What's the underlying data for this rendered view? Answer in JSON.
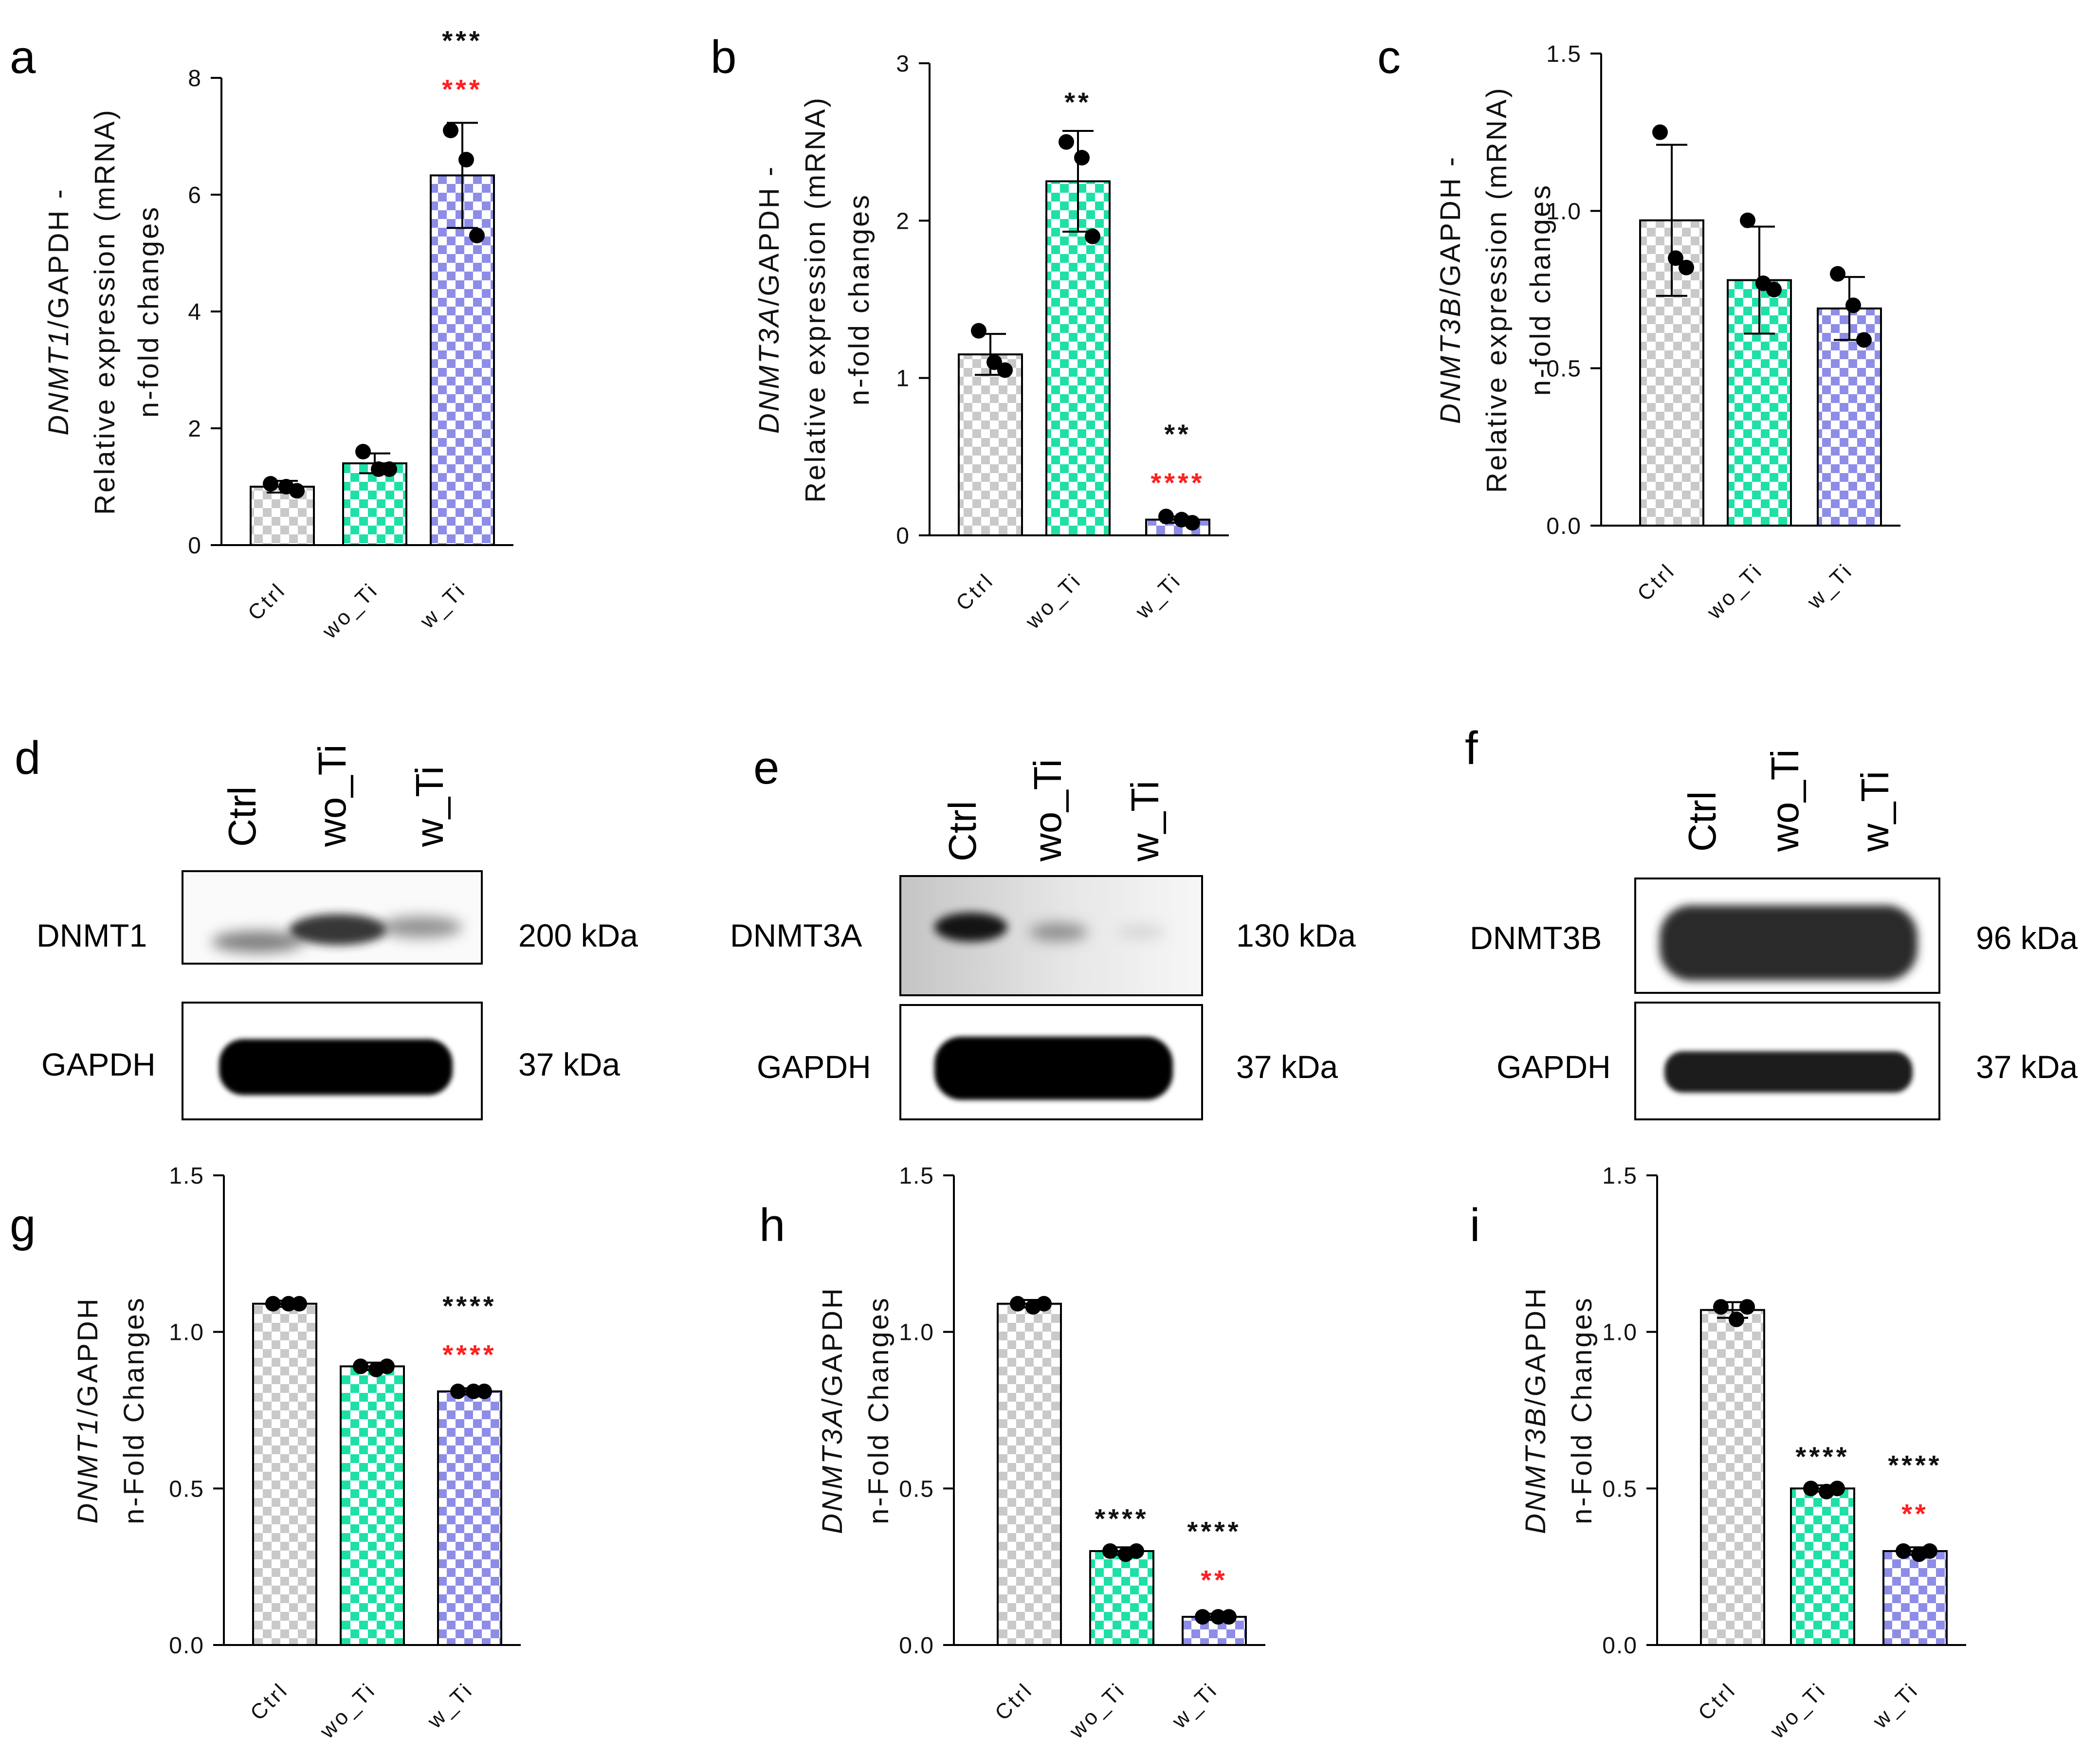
{
  "colors": {
    "Ctrl": "#c9c9c9",
    "wo_Ti": "#1ee0a6",
    "w_Ti": "#8d8de8",
    "sig_black": "#111111",
    "sig_red": "#ff2020"
  },
  "chart_data": [
    {
      "panel": "a",
      "type": "bar",
      "title": "",
      "ylabel": [
        "DNMT1/GAPDH -",
        "Relative expression (mRNA)",
        "n-fold changes"
      ],
      "ylabel_italic": "DNMT1",
      "categories": [
        "Ctrl",
        "wo_Ti",
        "w_Ti"
      ],
      "values": [
        1.0,
        1.4,
        6.33
      ],
      "errors": [
        0.1,
        0.17,
        0.9
      ],
      "points": [
        [
          1.05,
          1.0,
          0.93
        ],
        [
          1.6,
          1.3,
          1.3
        ],
        [
          7.1,
          6.6,
          5.3
        ]
      ],
      "ylim": [
        0,
        8
      ],
      "yticks": [
        0,
        2,
        4,
        6,
        8
      ],
      "ytick_labels": [
        "0",
        "2",
        "4",
        "6",
        "8"
      ],
      "significance": [
        {
          "category": "w_Ti",
          "black": "***",
          "red": "***"
        }
      ]
    },
    {
      "panel": "b",
      "type": "bar",
      "title": "",
      "ylabel": [
        "DNMT3A/GAPDH -",
        "Relative expression (mRNA)",
        "n-fold changes"
      ],
      "ylabel_italic": "DNMT3A",
      "categories": [
        "Ctrl",
        "wo_Ti",
        "w_Ti"
      ],
      "values": [
        1.15,
        2.25,
        0.1
      ],
      "errors": [
        0.13,
        0.32,
        0.02
      ],
      "points": [
        [
          1.3,
          1.1,
          1.05
        ],
        [
          2.5,
          2.4,
          1.9
        ],
        [
          0.12,
          0.1,
          0.08
        ]
      ],
      "ylim": [
        0,
        3
      ],
      "yticks": [
        0,
        1,
        2,
        3
      ],
      "ytick_labels": [
        "0",
        "1",
        "2",
        "3"
      ],
      "significance": [
        {
          "category": "wo_Ti",
          "black": "**",
          "red": ""
        },
        {
          "category": "w_Ti",
          "black": "**",
          "red": "****"
        }
      ]
    },
    {
      "panel": "c",
      "type": "bar",
      "title": "",
      "ylabel": [
        "DNMT3B/GAPDH -",
        "Relative expression (mRNA)",
        "n-fold changes"
      ],
      "ylabel_italic": "DNMT3B",
      "categories": [
        "Ctrl",
        "wo_Ti",
        "w_Ti"
      ],
      "values": [
        0.97,
        0.78,
        0.69
      ],
      "errors": [
        0.24,
        0.17,
        0.1
      ],
      "points": [
        [
          1.25,
          0.85,
          0.82
        ],
        [
          0.97,
          0.77,
          0.75
        ],
        [
          0.8,
          0.7,
          0.59
        ]
      ],
      "ylim": [
        0,
        1.5
      ],
      "yticks": [
        0,
        0.5,
        1.0,
        1.5
      ],
      "ytick_labels": [
        "0.0",
        "0.5",
        "1.0",
        "1.5"
      ],
      "significance": []
    },
    {
      "panel": "g",
      "type": "bar",
      "title": "",
      "ylabel": [
        "DNMT1/GAPDH",
        "n-Fold Changes"
      ],
      "ylabel_italic": "DNMT1",
      "categories": [
        "Ctrl",
        "wo_Ti",
        "w_Ti"
      ],
      "values": [
        1.09,
        0.89,
        0.81
      ],
      "errors": [
        0.01,
        0.012,
        0.01
      ],
      "points": [
        [
          1.09,
          1.09,
          1.09
        ],
        [
          0.89,
          0.88,
          0.89
        ],
        [
          0.81,
          0.81,
          0.81
        ]
      ],
      "ylim": [
        0,
        1.5
      ],
      "yticks": [
        0,
        0.5,
        1.0,
        1.5
      ],
      "ytick_labels": [
        "0.0",
        "0.5",
        "1.0",
        "1.5"
      ],
      "significance": [
        {
          "category": "w_Ti",
          "black": "****",
          "red": "****"
        }
      ]
    },
    {
      "panel": "h",
      "type": "bar",
      "title": "",
      "ylabel": [
        "DNMT3A/GAPDH",
        "n-Fold Changes"
      ],
      "ylabel_italic": "DNMT3A",
      "categories": [
        "Ctrl",
        "wo_Ti",
        "w_Ti"
      ],
      "values": [
        1.09,
        0.3,
        0.09
      ],
      "errors": [
        0.012,
        0.012,
        0.01
      ],
      "points": [
        [
          1.09,
          1.08,
          1.09
        ],
        [
          0.3,
          0.29,
          0.3
        ],
        [
          0.09,
          0.09,
          0.09
        ]
      ],
      "ylim": [
        0,
        1.5
      ],
      "yticks": [
        0,
        0.5,
        1.0,
        1.5
      ],
      "ytick_labels": [
        "0.0",
        "0.5",
        "1.0",
        "1.5"
      ],
      "significance": [
        {
          "category": "wo_Ti",
          "black": "****",
          "red": ""
        },
        {
          "category": "w_Ti",
          "black": "****",
          "red": "**"
        }
      ]
    },
    {
      "panel": "i",
      "type": "bar",
      "title": "",
      "ylabel": [
        "DNMT3B/GAPDH",
        "n-Fold Changes"
      ],
      "ylabel_italic": "DNMT3B",
      "categories": [
        "Ctrl",
        "wo_Ti",
        "w_Ti"
      ],
      "values": [
        1.07,
        0.5,
        0.3
      ],
      "errors": [
        0.025,
        0.01,
        0.012
      ],
      "points": [
        [
          1.08,
          1.04,
          1.08
        ],
        [
          0.5,
          0.49,
          0.5
        ],
        [
          0.3,
          0.29,
          0.3
        ]
      ],
      "ylim": [
        0,
        1.5
      ],
      "yticks": [
        0,
        0.5,
        1.0,
        1.5
      ],
      "ytick_labels": [
        "0.0",
        "0.5",
        "1.0",
        "1.5"
      ],
      "significance": [
        {
          "category": "wo_Ti",
          "black": "****",
          "red": ""
        },
        {
          "category": "w_Ti",
          "black": "****",
          "red": "**"
        }
      ]
    }
  ],
  "blots": [
    {
      "panel": "d",
      "lanes": [
        "Ctrl",
        "wo_Ti",
        "w_Ti"
      ],
      "target": "DNMT1",
      "target_kda": "200 kDa",
      "loading": "GAPDH",
      "loading_kda": "37 kDa"
    },
    {
      "panel": "e",
      "lanes": [
        "Ctrl",
        "wo_Ti",
        "w_Ti"
      ],
      "target": "DNMT3A",
      "target_kda": "130 kDa",
      "loading": "GAPDH",
      "loading_kda": "37 kDa"
    },
    {
      "panel": "f",
      "lanes": [
        "Ctrl",
        "wo_Ti",
        "w_Ti"
      ],
      "target": "DNMT3B",
      "target_kda": "96 kDa",
      "loading": "GAPDH",
      "loading_kda": "37 kDa"
    }
  ]
}
